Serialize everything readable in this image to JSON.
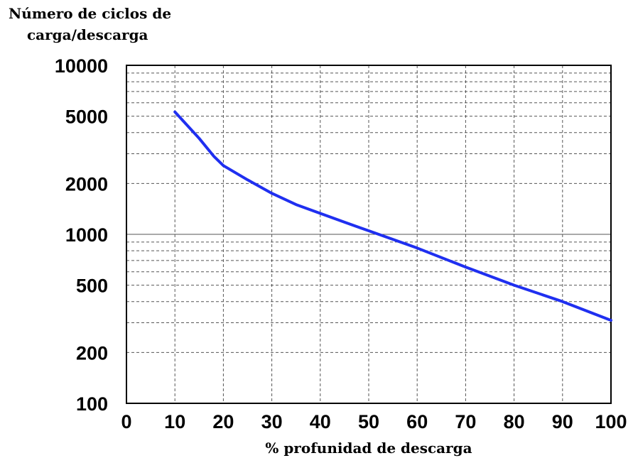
{
  "chart_data": {
    "type": "line",
    "ylabel": [
      "Número de ciclos de",
      "carga/descarga"
    ],
    "xlabel": "% profunidad de descarga",
    "xlim": [
      0,
      100
    ],
    "ylim": [
      100,
      10000
    ],
    "yscale": "log",
    "x_ticks": [
      "0",
      "10",
      "20",
      "30",
      "40",
      "50",
      "60",
      "70",
      "80",
      "90",
      "100"
    ],
    "y_ticks": [
      {
        "value": 10000,
        "label": "10000"
      },
      {
        "value": 5000,
        "label": "5000"
      },
      {
        "value": 2000,
        "label": "2000"
      },
      {
        "value": 1000,
        "label": "1000"
      },
      {
        "value": 500,
        "label": "500"
      },
      {
        "value": 200,
        "label": "200"
      },
      {
        "value": 100,
        "label": "100"
      }
    ],
    "y_minor_gridlines": [
      200,
      300,
      400,
      500,
      600,
      700,
      800,
      900,
      2000,
      3000,
      4000,
      5000,
      6000,
      7000,
      8000,
      9000
    ],
    "grid": true,
    "series": [
      {
        "color": "#1f2ff0",
        "x": [
          10,
          15,
          18,
          20,
          25,
          30,
          35,
          40,
          45,
          50,
          60,
          70,
          80,
          90,
          100
        ],
        "y": [
          5300,
          3700,
          2900,
          2550,
          2100,
          1750,
          1500,
          1330,
          1180,
          1050,
          830,
          640,
          500,
          400,
          310
        ]
      }
    ]
  }
}
